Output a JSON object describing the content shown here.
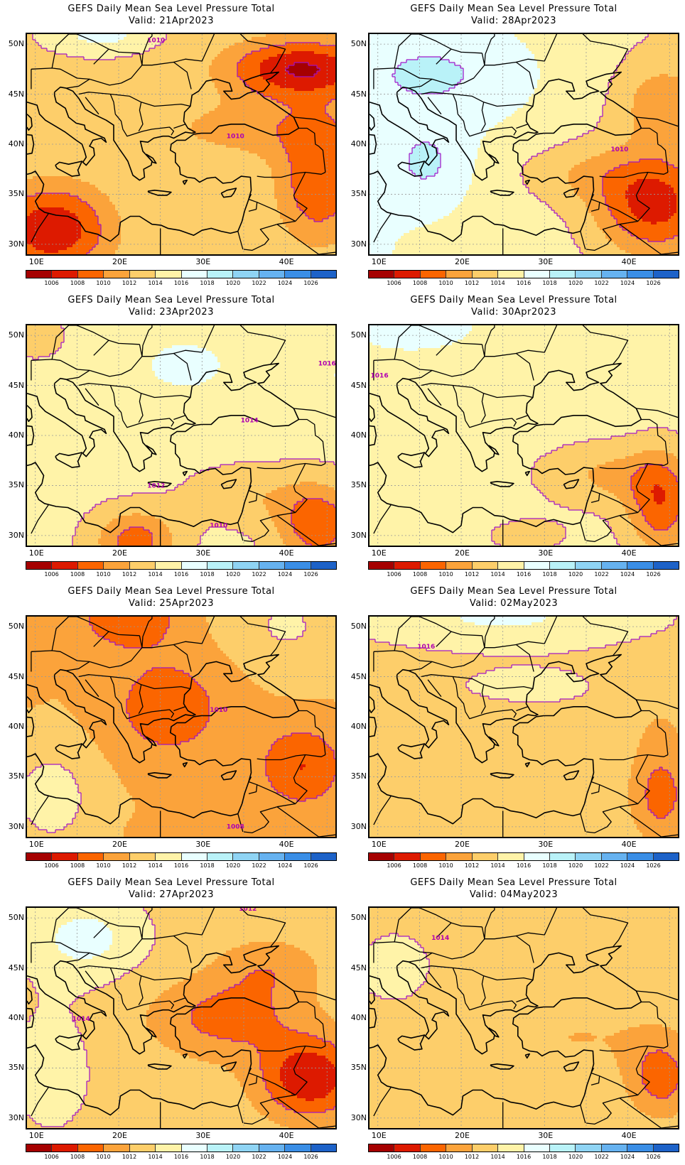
{
  "title": "GEFS Daily Mean Sea Level Pressure Total",
  "panels": [
    {
      "valid": "Valid: 21Apr2023",
      "labels": [
        "1010",
        "1010"
      ]
    },
    {
      "valid": "Valid: 28Apr2023",
      "labels": [
        "1010"
      ]
    },
    {
      "valid": "Valid: 23Apr2023",
      "labels": [
        "1016",
        "1014",
        "1012",
        "1010"
      ]
    },
    {
      "valid": "Valid: 30Apr2023",
      "labels": [
        "1016"
      ]
    },
    {
      "valid": "Valid: 25Apr2023",
      "labels": [
        "1010",
        "1008"
      ]
    },
    {
      "valid": "Valid: 02May2023",
      "labels": [
        "1016"
      ]
    },
    {
      "valid": "Valid: 27Apr2023",
      "labels": [
        "1012",
        "1014"
      ]
    },
    {
      "valid": "Valid: 04May2023",
      "labels": [
        "1014"
      ]
    }
  ],
  "lat_labels": [
    "50N",
    "45N",
    "40N",
    "35N",
    "30N"
  ],
  "lon_labels": [
    "10E",
    "20E",
    "30E",
    "40E"
  ],
  "colorbar": {
    "labels": [
      "1006",
      "1008",
      "1010",
      "1012",
      "1014",
      "1016",
      "1018",
      "1020",
      "1022",
      "1024",
      "1026"
    ],
    "colors": [
      "#a50000",
      "#dd1a00",
      "#fb6500",
      "#fba33b",
      "#fdce6a",
      "#fff3a8",
      "#e9ffff",
      "#b9f2f8",
      "#8fd4f4",
      "#66b2f0",
      "#3a8ee6",
      "#1d62c8"
    ]
  }
}
